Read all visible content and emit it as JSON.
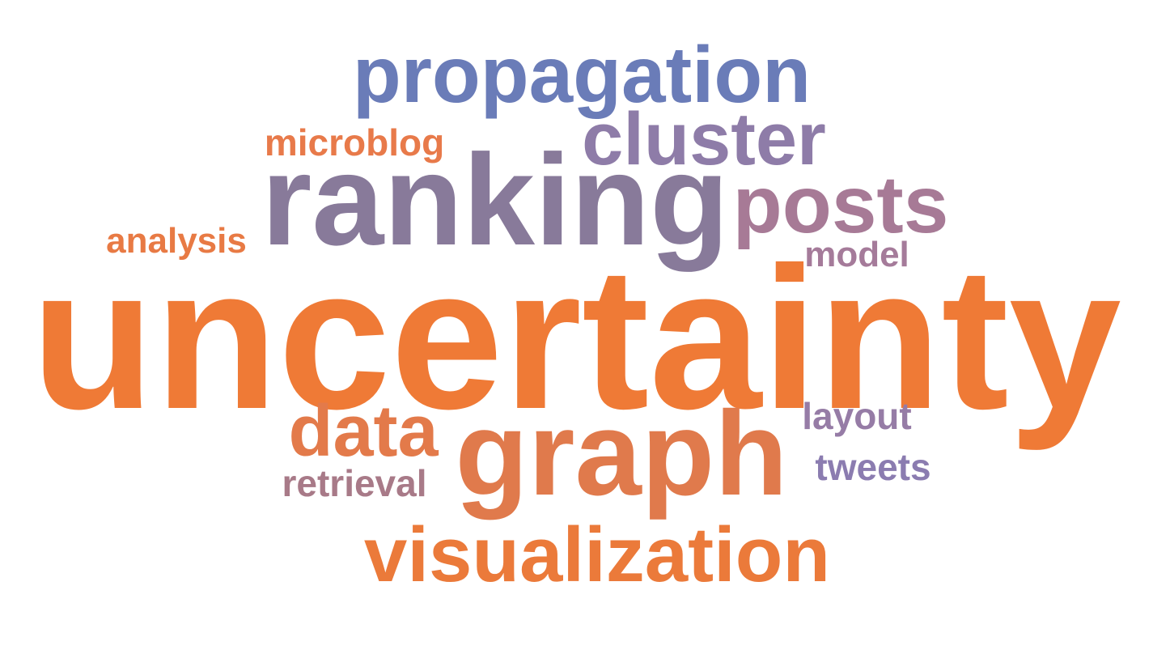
{
  "words": {
    "uncertainty": {
      "text": "uncertainty",
      "color": "#EF7A36"
    },
    "ranking": {
      "text": "ranking",
      "color": "#887A9A"
    },
    "graph": {
      "text": "graph",
      "color": "#E07A4C"
    },
    "propagation": {
      "text": "propagation",
      "color": "#6A7CB8"
    },
    "cluster": {
      "text": "cluster",
      "color": "#8E7CA8"
    },
    "posts": {
      "text": "posts",
      "color": "#A77A96"
    },
    "visualization": {
      "text": "visualization",
      "color": "#EB7A3A"
    },
    "data": {
      "text": "data",
      "color": "#E37A4A"
    },
    "microblog": {
      "text": "microblog",
      "color": "#E87A4A"
    },
    "analysis": {
      "text": "analysis",
      "color": "#E87A44"
    },
    "model": {
      "text": "model",
      "color": "#A57B9A"
    },
    "layout": {
      "text": "layout",
      "color": "#967CA6"
    },
    "tweets": {
      "text": "tweets",
      "color": "#8B7CB0"
    },
    "retrieval": {
      "text": "retrieval",
      "color": "#A87A88"
    }
  }
}
